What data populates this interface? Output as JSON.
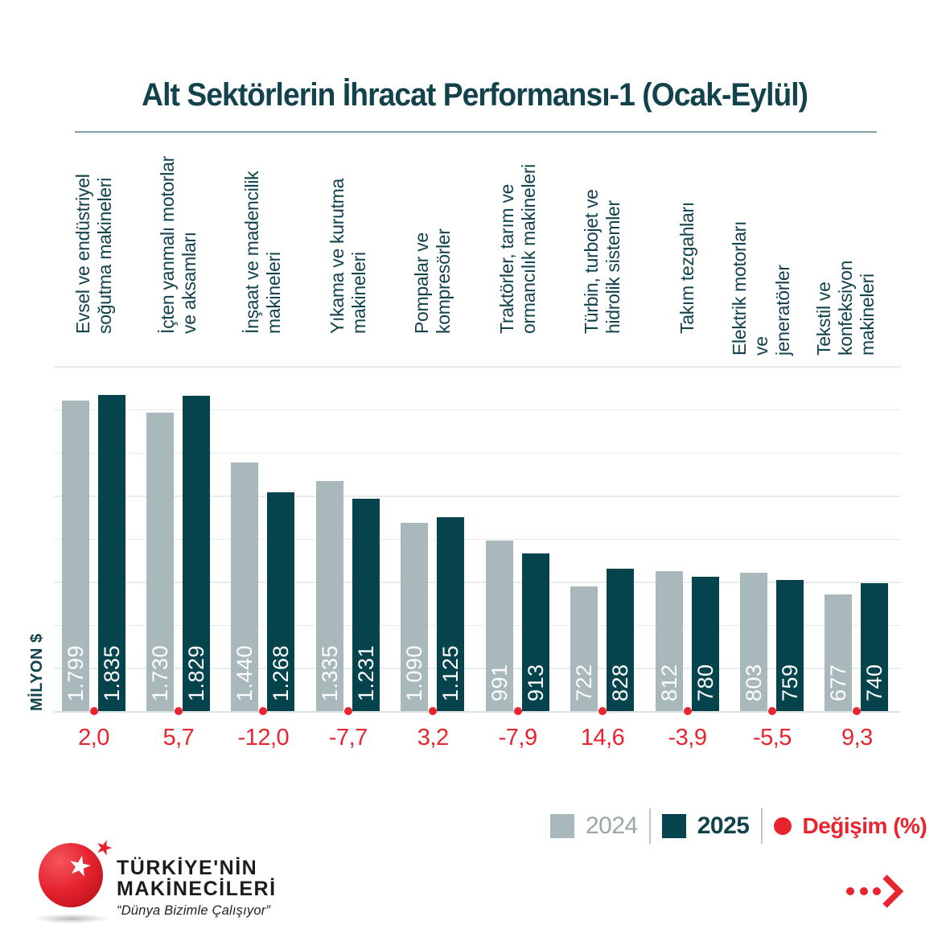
{
  "title": "Alt Sektörlerin İhracat Performansı-1 (Ocak-Eylül)",
  "y_axis_label": "MİLYON $",
  "chart_data": {
    "type": "bar",
    "title": "Alt Sektörlerin İhracat Performansı-1 (Ocak-Eylül)",
    "ylabel": "MİLYON $",
    "ylim": [
      0,
      2000
    ],
    "gridline_step": 250,
    "grid": true,
    "legend_position": "bottom-right",
    "categories": [
      "Evsel ve endüstriyel soğutma makineleri",
      "İçten yanmalı motorlar ve aksamları",
      "İnşaat ve madencilik makineleri",
      "Yıkama ve kurutma makineleri",
      "Pompalar ve kompresörler",
      "Traktörler, tarım ve ormancılık makineleri",
      "Türbin, turbojet ve hidrolik sistemler",
      "Takım tezgahları",
      "Elektrik motorları ve jeneratörler",
      "Tekstil ve konfeksiyon makineleri"
    ],
    "category_lines": [
      [
        "Evsel ve endüstriyel",
        "soğutma makineleri"
      ],
      [
        "İçten yanmalı motorlar",
        "ve aksamları"
      ],
      [
        "İnşaat ve madencilik",
        "makineleri"
      ],
      [
        "Yıkama ve kurutma",
        "makineleri"
      ],
      [
        "Pompalar ve",
        "kompresörler"
      ],
      [
        "Traktörler, tarım ve",
        "ormancılık makineleri"
      ],
      [
        "Türbin, turbojet ve",
        "hidrolik sistemler"
      ],
      [
        "Takım tezgahları"
      ],
      [
        "Elektrik motorları ve",
        "jeneratörler"
      ],
      [
        "Tekstil ve konfeksiyon",
        "makineleri"
      ]
    ],
    "series": [
      {
        "name": "2024",
        "values": [
          1799,
          1730,
          1440,
          1335,
          1090,
          991,
          722,
          812,
          803,
          677
        ]
      },
      {
        "name": "2025",
        "values": [
          1835,
          1829,
          1268,
          1231,
          1125,
          913,
          828,
          780,
          759,
          740
        ]
      }
    ],
    "value_labels_2024": [
      "1.799",
      "1.730",
      "1.440",
      "1.335",
      "1.090",
      "991",
      "722",
      "812",
      "803",
      "677"
    ],
    "value_labels_2025": [
      "1.835",
      "1.829",
      "1.268",
      "1.231",
      "1.125",
      "913",
      "828",
      "780",
      "759",
      "740"
    ],
    "change_percent": [
      2.0,
      5.7,
      -12.0,
      -7.7,
      3.2,
      -7.9,
      14.6,
      -3.9,
      -5.5,
      9.3
    ],
    "change_labels": [
      "2,0",
      "5,7",
      "-12,0",
      "-7,7",
      "3,2",
      "-7,9",
      "14,6",
      "-3,9",
      "-5,5",
      "9,3"
    ]
  },
  "legend": {
    "label_2024": "2024",
    "label_2025": "2025",
    "label_change": "Değişim (%)"
  },
  "logo": {
    "line1": "TÜRKİYE'NİN",
    "line2": "MAKİNECİLERİ",
    "tagline": "“Dünya Bizimle Çalışıyor”",
    "star_glyph": "★"
  },
  "colors": {
    "bar_2024": "#a9b8ba",
    "bar_2025": "#05434d",
    "accent_red": "#e8242f",
    "title_teal": "#12424c",
    "legend_gray": "#9aa6a9",
    "gridline": "#e9ecec",
    "title_rule": "#7fa2a9"
  }
}
